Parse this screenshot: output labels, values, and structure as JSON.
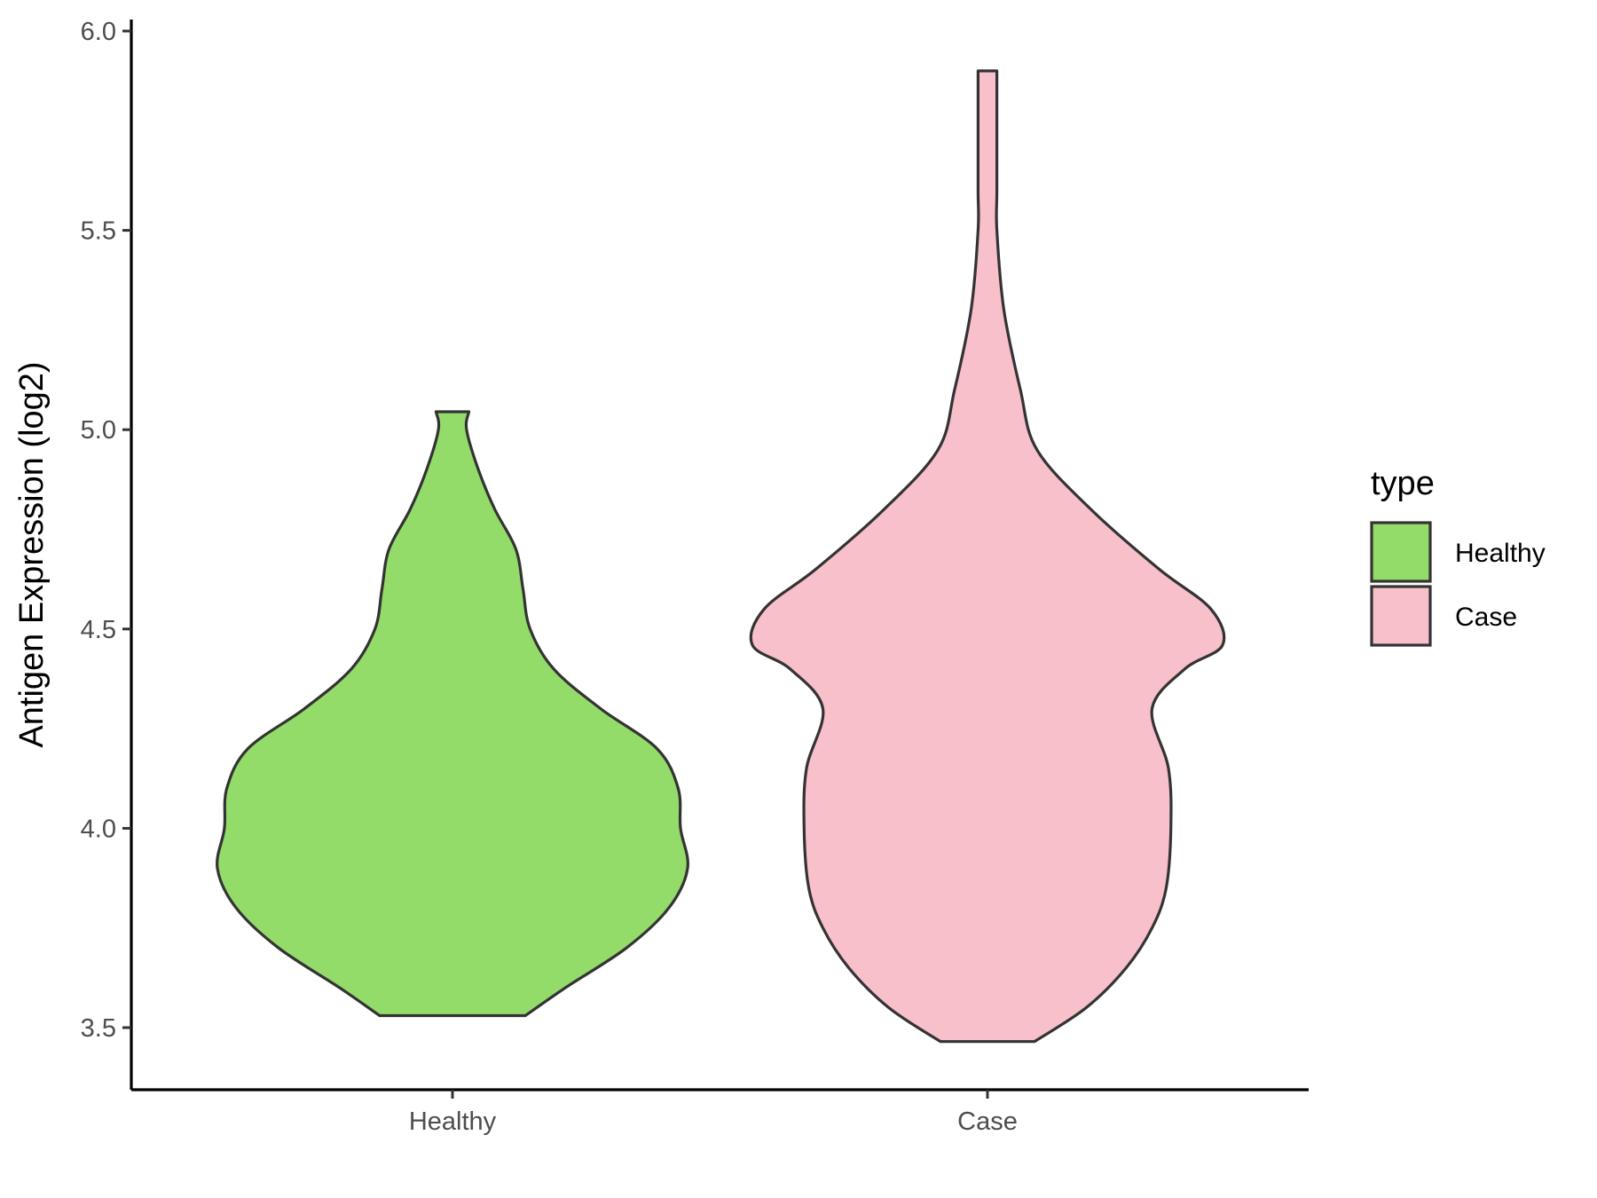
{
  "chart_data": {
    "type": "violin",
    "title": "",
    "xlabel": "",
    "ylabel": "Antigen Expression (log2)",
    "ylim": [
      3.35,
      6.02
    ],
    "yticks": [
      "3.5",
      "4.0",
      "4.5",
      "5.0",
      "5.5",
      "6.0"
    ],
    "categories": [
      "Healthy",
      "Case"
    ],
    "legend": {
      "title": "type",
      "placement": "right",
      "entries": [
        "Healthy",
        "Case"
      ]
    },
    "series": [
      {
        "name": "Healthy",
        "color": "#93dc6a",
        "y_min": 3.53,
        "y_max": 5.045,
        "density": [
          [
            3.53,
            0.31
          ],
          [
            3.6,
            0.48
          ],
          [
            3.7,
            0.74
          ],
          [
            3.8,
            0.92
          ],
          [
            3.9,
            1.0
          ],
          [
            4.0,
            0.97
          ],
          [
            4.1,
            0.96
          ],
          [
            4.2,
            0.87
          ],
          [
            4.3,
            0.63
          ],
          [
            4.4,
            0.43
          ],
          [
            4.5,
            0.33
          ],
          [
            4.6,
            0.3
          ],
          [
            4.7,
            0.27
          ],
          [
            4.8,
            0.18
          ],
          [
            4.9,
            0.11
          ],
          [
            5.0,
            0.06
          ],
          [
            5.045,
            0.07
          ]
        ]
      },
      {
        "name": "Case",
        "color": "#f8c0cb",
        "y_min": 3.465,
        "y_max": 5.9,
        "density": [
          [
            3.465,
            0.2
          ],
          [
            3.55,
            0.42
          ],
          [
            3.65,
            0.59
          ],
          [
            3.75,
            0.7
          ],
          [
            3.85,
            0.76
          ],
          [
            4.0,
            0.78
          ],
          [
            4.15,
            0.77
          ],
          [
            4.3,
            0.7
          ],
          [
            4.4,
            0.84
          ],
          [
            4.46,
            1.0
          ],
          [
            4.55,
            0.95
          ],
          [
            4.65,
            0.73
          ],
          [
            4.8,
            0.44
          ],
          [
            4.95,
            0.21
          ],
          [
            5.1,
            0.14
          ],
          [
            5.3,
            0.07
          ],
          [
            5.5,
            0.04
          ],
          [
            5.6,
            0.04
          ],
          [
            5.8,
            0.04
          ],
          [
            5.9,
            0.04
          ]
        ]
      }
    ]
  }
}
